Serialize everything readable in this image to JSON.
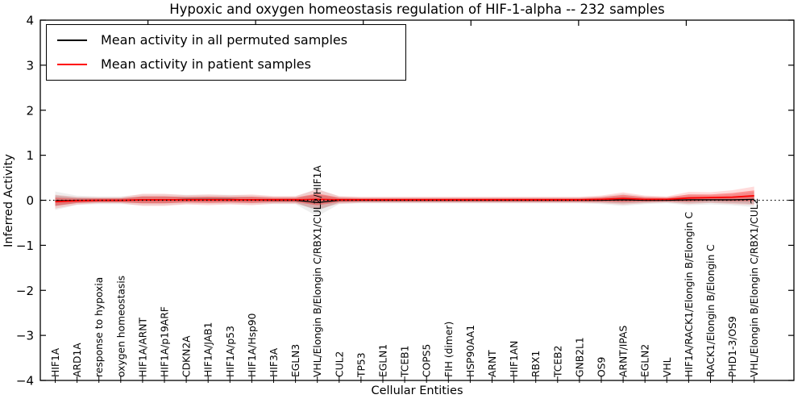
{
  "chart": {
    "title": "Hypoxic and oxygen homeostasis regulation of HIF-1-alpha -- 232 samples",
    "xlabel": "Cellular Entities",
    "ylabel": "Inferred Activity"
  },
  "legend": {
    "permuted": "Mean activity in all permuted samples",
    "patient": "Mean activity in patient samples"
  },
  "chart_data": {
    "type": "line",
    "title": "Hypoxic and oxygen homeostasis regulation of HIF-1-alpha -- 232 samples",
    "xlabel": "Cellular Entities",
    "ylabel": "Inferred Activity",
    "ylim": [
      -4,
      4
    ],
    "yticks": [
      4,
      3,
      2,
      1,
      0,
      -1,
      -2,
      -3,
      -4
    ],
    "xlim": [
      0,
      35
    ],
    "top_xticks": [
      5,
      10,
      15,
      20,
      25,
      30
    ],
    "grid": false,
    "legend_position": "upper left",
    "zero_line": 0,
    "categories": [
      "HIF1A",
      "ARD1A",
      "response to hypoxia",
      "oxygen homeostasis",
      "HIF1A/ARNT",
      "HIF1A/p19ARF",
      "CDKN2A",
      "HIF1A/JAB1",
      "HIF1A/p53",
      "HIF1A/Hsp90",
      "HIF3A",
      "EGLN3",
      "VHL/Elongin B/Elongin C/RBX1/CUL2/HIF1A",
      "CUL2",
      "TP53",
      "EGLN1",
      "TCEB1",
      "COPS5",
      "FIH (dimer)",
      "HSP90AA1",
      "ARNT",
      "HIF1AN",
      "RBX1",
      "TCEB2",
      "GNB2L1",
      "OS9",
      "ARNT/IPAS",
      "EGLN2",
      "VHL",
      "HIF1A/RACK1/Elongin B/Elongin C",
      "RACK1/Elongin B/Elongin C",
      "PHD1-3/OS9",
      "VHL/Elongin B/Elongin C/RBX1/CUL2"
    ],
    "series": [
      {
        "key": "permuted",
        "name": "Mean activity in all permuted samples",
        "color": "#000000",
        "width": 1.3,
        "values": [
          -0.01,
          0,
          0,
          0,
          0.01,
          0.01,
          0.02,
          0.02,
          0.02,
          0.01,
          0,
          0,
          -0.05,
          0,
          0,
          0,
          0,
          0,
          0,
          0,
          0,
          0,
          0,
          0,
          0,
          0,
          0.01,
          0,
          0,
          0.01,
          0.01,
          0.01,
          0.02
        ]
      },
      {
        "key": "patient",
        "name": "Mean activity in patient samples",
        "color": "#ff0000",
        "width": 1.8,
        "values": [
          -0.03,
          -0.01,
          0,
          0,
          0.01,
          0.01,
          0.01,
          0.01,
          0.01,
          0.01,
          0.01,
          0.01,
          0.02,
          0.01,
          0.01,
          0.01,
          0.01,
          0.01,
          0.01,
          0.01,
          0.01,
          0.01,
          0.01,
          0.01,
          0.01,
          0.02,
          0.04,
          0.02,
          0.02,
          0.05,
          0.06,
          0.07,
          0.1
        ]
      }
    ],
    "bands": [
      {
        "key": "permuted-range",
        "center": "permuted",
        "color": "#888888",
        "opacity": 0.32,
        "outer_scale": 1.7,
        "outer_opacity": 0.14,
        "half_widths": [
          0.12,
          0.06,
          0.05,
          0.05,
          0.07,
          0.07,
          0.06,
          0.06,
          0.06,
          0.06,
          0.05,
          0.05,
          0.18,
          0.05,
          0.04,
          0.04,
          0.04,
          0.04,
          0.04,
          0.04,
          0.04,
          0.04,
          0.04,
          0.04,
          0.04,
          0.05,
          0.08,
          0.05,
          0.04,
          0.07,
          0.06,
          0.07,
          0.1
        ]
      },
      {
        "key": "patient-range",
        "center": "patient",
        "color": "#ff0000",
        "opacity": 0.32,
        "outer_scale": 1.7,
        "outer_opacity": 0.14,
        "half_widths": [
          0.09,
          0.05,
          0.04,
          0.04,
          0.08,
          0.08,
          0.06,
          0.07,
          0.06,
          0.07,
          0.05,
          0.05,
          0.13,
          0.05,
          0.04,
          0.04,
          0.04,
          0.04,
          0.04,
          0.04,
          0.04,
          0.04,
          0.04,
          0.04,
          0.04,
          0.05,
          0.08,
          0.05,
          0.04,
          0.08,
          0.07,
          0.09,
          0.12
        ]
      }
    ]
  }
}
